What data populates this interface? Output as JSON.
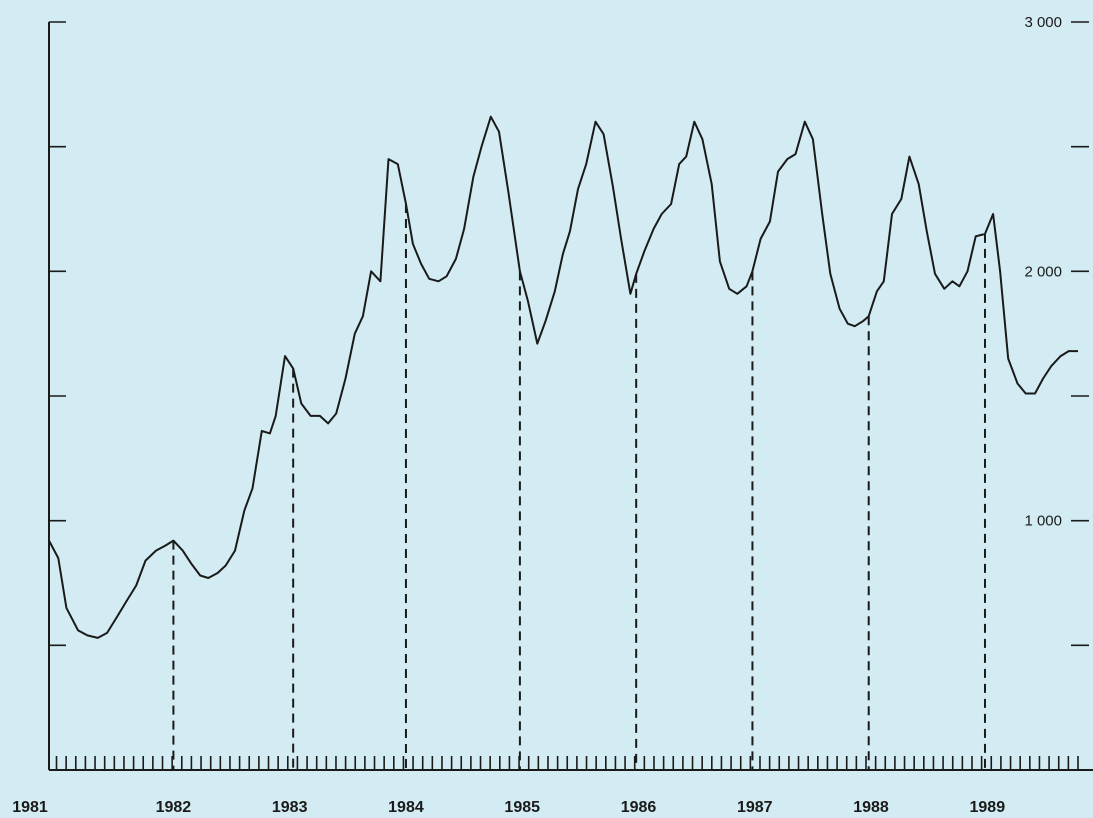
{
  "chart_data": {
    "type": "line",
    "title": "",
    "xlabel": "",
    "ylabel": "",
    "ylim": [
      0,
      3000
    ],
    "xlim": [
      1981,
      1989.85
    ],
    "grid": false,
    "legend": "none",
    "y_ticks_major": [
      {
        "value": 1000,
        "label": "1 000"
      },
      {
        "value": 2000,
        "label": "2 000"
      },
      {
        "value": 3000,
        "label": "3 000"
      }
    ],
    "y_ticks_minor": [
      500,
      1500,
      2500
    ],
    "x_tick_labels": [
      "1981",
      "1982",
      "1983",
      "1984",
      "1985",
      "1986",
      "1987",
      "1988",
      "1989"
    ],
    "peak_markers": [
      1982.07,
      1983.1,
      1984.07,
      1985.05,
      1986.05,
      1987.05,
      1988.05,
      1989.05
    ],
    "series": [
      {
        "x": [
          1981.0,
          1981.08,
          1981.15,
          1981.25,
          1981.33,
          1981.42,
          1981.5,
          1981.58,
          1981.67,
          1981.75,
          1981.83,
          1981.92,
          1982.0,
          1982.07,
          1982.15,
          1982.22,
          1982.3,
          1982.37,
          1982.45,
          1982.52,
          1982.6,
          1982.68,
          1982.75,
          1982.83,
          1982.9,
          1982.95,
          1983.03,
          1983.1,
          1983.17,
          1983.25,
          1983.33,
          1983.4,
          1983.47,
          1983.55,
          1983.63,
          1983.7,
          1983.77,
          1983.85,
          1983.92,
          1984.0,
          1984.07,
          1984.13,
          1984.2,
          1984.27,
          1984.35,
          1984.42,
          1984.5,
          1984.57,
          1984.65,
          1984.72,
          1984.8,
          1984.87,
          1984.95,
          1985.05,
          1985.12,
          1985.2,
          1985.27,
          1985.35,
          1985.42,
          1985.48,
          1985.55,
          1985.62,
          1985.7,
          1985.77,
          1985.85,
          1985.92,
          1986.0,
          1986.05,
          1986.12,
          1986.2,
          1986.27,
          1986.35,
          1986.42,
          1986.48,
          1986.55,
          1986.62,
          1986.7,
          1986.77,
          1986.85,
          1986.92,
          1987.0,
          1987.05,
          1987.12,
          1987.2,
          1987.27,
          1987.35,
          1987.42,
          1987.5,
          1987.57,
          1987.65,
          1987.72,
          1987.8,
          1987.87,
          1987.93,
          1988.0,
          1988.05,
          1988.12,
          1988.18,
          1988.25,
          1988.33,
          1988.4,
          1988.48,
          1988.55,
          1988.62,
          1988.7,
          1988.77,
          1988.83,
          1988.9,
          1988.97,
          1989.05,
          1989.12,
          1989.18,
          1989.25,
          1989.33,
          1989.4,
          1989.48,
          1989.55,
          1989.62,
          1989.7,
          1989.77,
          1989.85
        ],
        "y": [
          920,
          850,
          650,
          560,
          540,
          530,
          550,
          610,
          680,
          740,
          840,
          880,
          900,
          920,
          880,
          830,
          780,
          770,
          790,
          820,
          880,
          1040,
          1130,
          1360,
          1350,
          1420,
          1660,
          1610,
          1470,
          1420,
          1420,
          1390,
          1430,
          1570,
          1750,
          1820,
          2000,
          1960,
          2450,
          2430,
          2270,
          2110,
          2030,
          1970,
          1960,
          1980,
          2050,
          2170,
          2380,
          2500,
          2620,
          2560,
          2320,
          2000,
          1880,
          1710,
          1800,
          1920,
          2070,
          2160,
          2330,
          2430,
          2600,
          2550,
          2340,
          2130,
          1910,
          1990,
          2080,
          2170,
          2230,
          2270,
          2430,
          2460,
          2600,
          2530,
          2350,
          2040,
          1930,
          1910,
          1940,
          2000,
          2130,
          2200,
          2400,
          2450,
          2470,
          2600,
          2530,
          2230,
          1990,
          1850,
          1790,
          1780,
          1800,
          1820,
          1920,
          1960,
          2230,
          2290,
          2460,
          2350,
          2160,
          1990,
          1930,
          1960,
          1940,
          2000,
          2140,
          2150,
          2230,
          2000,
          1650,
          1550,
          1510,
          1510,
          1570,
          1620,
          1660,
          1680,
          1680
        ]
      }
    ]
  }
}
